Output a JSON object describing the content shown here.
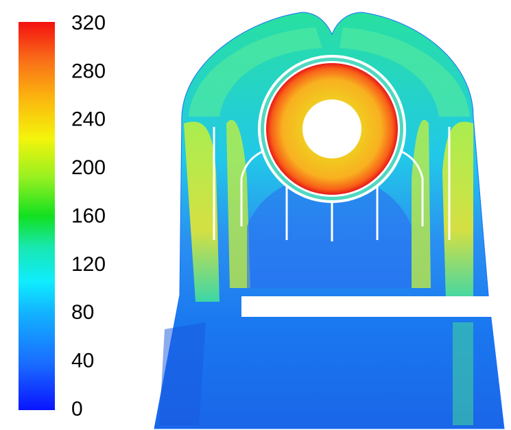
{
  "colorbar": {
    "ticks": [
      0,
      40,
      80,
      120,
      160,
      200,
      240,
      280,
      320
    ]
  }
}
